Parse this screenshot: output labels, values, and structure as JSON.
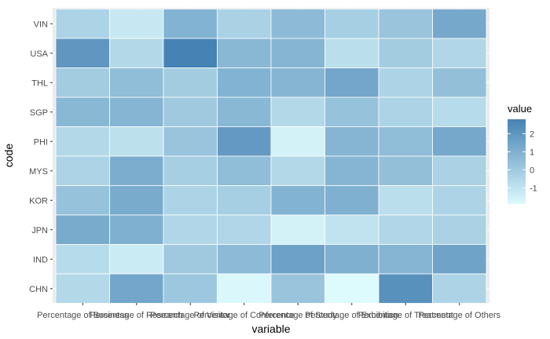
{
  "chart_data": {
    "type": "heatmap",
    "xlabel": "variable",
    "ylabel": "code",
    "x_categories": [
      "Percentage of Business",
      "Percentage of Research",
      "Percentage of Visitor",
      "Percentage of Conference",
      "Percentage of Study",
      "Percentage of Exhibition",
      "Percentage of Treatment",
      "Percentage of Others"
    ],
    "y_categories": [
      "VIN",
      "USA",
      "THL",
      "SGP",
      "PHI",
      "MYS",
      "KOR",
      "JPN",
      "IND",
      "CHN"
    ],
    "values": [
      [
        -0.4,
        -1.2,
        0.9,
        -0.3,
        0.6,
        -0.2,
        0.2,
        1.3
      ],
      [
        2.0,
        -0.6,
        2.8,
        0.7,
        0.8,
        -0.8,
        -0.1,
        -0.5
      ],
      [
        -0.1,
        0.5,
        -0.1,
        0.9,
        0.8,
        1.4,
        -0.4,
        0.4
      ],
      [
        0.7,
        0.8,
        0.0,
        0.7,
        -0.6,
        0.3,
        -0.4,
        -0.7
      ],
      [
        -0.6,
        -0.9,
        0.2,
        1.9,
        -1.6,
        0.8,
        0.5,
        1.3
      ],
      [
        -0.4,
        1.1,
        -0.2,
        0.5,
        -0.6,
        0.8,
        0.4,
        -0.3
      ],
      [
        0.3,
        1.2,
        -0.4,
        -0.2,
        0.9,
        1.0,
        -0.8,
        -0.4
      ],
      [
        1.2,
        1.0,
        -0.5,
        -0.5,
        -1.6,
        -1.0,
        -0.5,
        -0.3
      ],
      [
        -0.7,
        -1.3,
        0.0,
        0.6,
        1.6,
        1.0,
        0.8,
        1.5
      ],
      [
        -0.6,
        1.4,
        0.1,
        -1.8,
        0.2,
        -1.9,
        2.2,
        -0.4
      ]
    ],
    "legend": {
      "title": "value",
      "ticks": [
        2,
        1,
        0,
        -1
      ],
      "range": [
        -1.9,
        2.8
      ],
      "low_color": "#ddfafd",
      "high_color": "#4682b4"
    },
    "panel_background": "#ebebeb",
    "grid": true
  }
}
